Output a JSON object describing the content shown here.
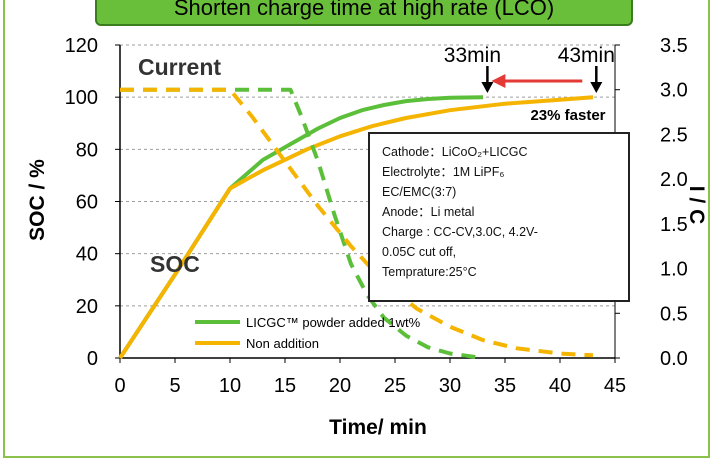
{
  "banner_text": "Shorten charge time at high rate (LCO)",
  "info_box": {
    "lines": [
      "Cathode：LiCoO₂+LICGC",
      "Electrolyte：1M LiPF₆",
      "EC/EMC(3:7)",
      "Anode：Li metal",
      "Charge : CC-CV,3.0C, 4.2V-",
      "0.05C cut off,",
      "Temprature:25°C"
    ]
  },
  "colors": {
    "licgc": "#5cbf3a",
    "non_addition": "#f4b400",
    "arrow": "#e53935",
    "grid": "#9e9e9e"
  },
  "chart_data": {
    "type": "line",
    "title": "",
    "xlabel": "Time/ min",
    "ylabel": "SOC / %",
    "y2label": "I / C",
    "xlim": [
      0,
      45
    ],
    "ylim": [
      0,
      120
    ],
    "y2lim": [
      0,
      3.5
    ],
    "xticks": [
      0,
      5,
      10,
      15,
      20,
      25,
      30,
      35,
      40,
      45
    ],
    "yticks": [
      0,
      20,
      40,
      60,
      80,
      100,
      120
    ],
    "y2ticks": [
      "0.0",
      "0.5",
      "1.0",
      "1.5",
      "2.0",
      "2.5",
      "3.0",
      "3.5"
    ],
    "legend_position": "bottom-left",
    "labels": {
      "current": "Current",
      "soc": "SOC"
    },
    "annotations": {
      "t1": "33min",
      "t2": "43min",
      "gain": "23% faster"
    },
    "series": [
      {
        "name": "LICGC™ powder added 1wt%",
        "axis": "SOC",
        "style": "solid",
        "color": "#5cbf3a",
        "x": [
          0,
          5,
          10,
          13,
          15.5,
          18,
          20,
          22,
          24,
          26,
          28,
          30,
          33
        ],
        "y": [
          0,
          32,
          65,
          76,
          82,
          88,
          92,
          95,
          97,
          98.5,
          99.3,
          99.8,
          100
        ]
      },
      {
        "name": "Non addition",
        "axis": "SOC",
        "style": "solid",
        "color": "#f4b400",
        "x": [
          0,
          5,
          10,
          13,
          15,
          17,
          20,
          23,
          26,
          30,
          35,
          40,
          43
        ],
        "y": [
          0,
          32,
          65,
          72,
          76,
          80,
          85,
          89,
          92,
          95,
          97.5,
          99,
          100
        ]
      },
      {
        "name": "LICGC™ powder added 1wt%",
        "axis": "I",
        "style": "dashed",
        "color": "#5cbf3a",
        "x": [
          0,
          15.5,
          16.5,
          18,
          19.5,
          21,
          22.5,
          24,
          26,
          28,
          30,
          33
        ],
        "y": [
          3.0,
          3.0,
          2.7,
          2.2,
          1.6,
          1.05,
          0.7,
          0.45,
          0.25,
          0.12,
          0.05,
          0.0
        ]
      },
      {
        "name": "Non addition",
        "axis": "I",
        "style": "dashed",
        "color": "#f4b400",
        "x": [
          0,
          10,
          12,
          15,
          18,
          21,
          24,
          27,
          30,
          33,
          36,
          40,
          43
        ],
        "y": [
          3.0,
          3.0,
          2.7,
          2.2,
          1.7,
          1.25,
          0.85,
          0.55,
          0.35,
          0.2,
          0.11,
          0.05,
          0.03
        ]
      }
    ]
  }
}
